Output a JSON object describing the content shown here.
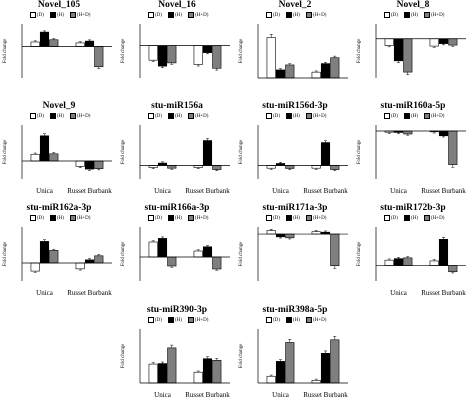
{
  "legend": {
    "d": "(D)",
    "h": "(H)",
    "hd": "(H+D)"
  },
  "colors": {
    "d": "#ffffff",
    "h": "#000000",
    "hd": "#7f7f7f",
    "axis": "#000000",
    "err": "#000000"
  },
  "ylabel": "Fold change",
  "categories": [
    "Unica",
    "Russet Burbank"
  ],
  "chart_data": [
    {
      "type": "bar",
      "title": "Novel_105",
      "categories": [
        "Unica",
        "Russet Burbank"
      ],
      "ylim": [
        -7,
        5
      ],
      "show_xcats": false,
      "series": [
        {
          "name": "(D)",
          "values": [
            1,
            0.8
          ]
        },
        {
          "name": "(H)",
          "values": [
            3.2,
            1.2
          ]
        },
        {
          "name": "(H+D)",
          "values": [
            1.5,
            -4.5
          ]
        }
      ]
    },
    {
      "type": "bar",
      "title": "Novel_16",
      "categories": [
        "Unica",
        "Russet Burbank"
      ],
      "ylim": [
        -6,
        4
      ],
      "show_xcats": false,
      "series": [
        {
          "name": "(D)",
          "values": [
            -2.7,
            -3.5
          ]
        },
        {
          "name": "(H)",
          "values": [
            -3.8,
            -1.3
          ]
        },
        {
          "name": "(H+D)",
          "values": [
            -3.2,
            -4.2
          ]
        }
      ]
    },
    {
      "type": "bar",
      "title": "Novel_2",
      "categories": [
        "Unica",
        "Russet Burbank"
      ],
      "ylim": [
        0,
        12
      ],
      "show_xcats": false,
      "series": [
        {
          "name": "(D)",
          "values": [
            9,
            1.3
          ]
        },
        {
          "name": "(H)",
          "values": [
            1.8,
            3.2
          ]
        },
        {
          "name": "(H+D)",
          "values": [
            2.9,
            4.5
          ]
        }
      ]
    },
    {
      "type": "bar",
      "title": "Novel_8",
      "categories": [
        "Unica",
        "Russet Burbank"
      ],
      "ylim": [
        -8,
        3
      ],
      "show_xcats": false,
      "series": [
        {
          "name": "(D)",
          "values": [
            -1.4,
            -1.5
          ]
        },
        {
          "name": "(H)",
          "values": [
            -4.5,
            -1
          ]
        },
        {
          "name": "(H+D)",
          "values": [
            -6.8,
            -1.3
          ]
        }
      ]
    },
    {
      "type": "bar",
      "title": "Novel_9",
      "categories": [
        "Unica",
        "Russet Burbank"
      ],
      "ylim": [
        -4,
        8
      ],
      "show_xcats": true,
      "series": [
        {
          "name": "(D)",
          "values": [
            1.5,
            -1.2
          ]
        },
        {
          "name": "(H)",
          "values": [
            5.6,
            -1.8
          ]
        },
        {
          "name": "(H+D)",
          "values": [
            1.6,
            -1.7
          ]
        }
      ]
    },
    {
      "type": "bar",
      "title": "stu-miR156a",
      "categories": [
        "Unica",
        "Russet Burbank"
      ],
      "ylim": [
        -10,
        30
      ],
      "show_xcats": true,
      "series": [
        {
          "name": "(D)",
          "values": [
            -1.5,
            -1.5
          ]
        },
        {
          "name": "(H)",
          "values": [
            1.8,
            18.5
          ]
        },
        {
          "name": "(H+D)",
          "values": [
            -2,
            -3
          ]
        }
      ]
    },
    {
      "type": "bar",
      "title": "stu-miR156d-3p",
      "categories": [
        "Unica",
        "Russet Burbank"
      ],
      "ylim": [
        -10,
        30
      ],
      "show_xcats": true,
      "series": [
        {
          "name": "(D)",
          "values": [
            -2,
            -2
          ]
        },
        {
          "name": "(H)",
          "values": [
            1.5,
            17
          ]
        },
        {
          "name": "(H+D)",
          "values": [
            -2.2,
            -3
          ]
        }
      ]
    },
    {
      "type": "bar",
      "title": "stu-miR160a-5p",
      "categories": [
        "Unica",
        "Russet Burbank"
      ],
      "ylim": [
        -40,
        5
      ],
      "show_xcats": true,
      "series": [
        {
          "name": "(D)",
          "values": [
            -1,
            -0.5
          ]
        },
        {
          "name": "(H)",
          "values": [
            -1.2,
            -4
          ]
        },
        {
          "name": "(H+D)",
          "values": [
            -2.5,
            -28
          ]
        }
      ]
    },
    {
      "type": "bar",
      "title": "stu-miR162a-3p",
      "categories": [
        "Unica",
        "Russet Burbank"
      ],
      "ylim": [
        -4,
        8
      ],
      "show_xcats": true,
      "series": [
        {
          "name": "(D)",
          "values": [
            -1.8,
            -1.3
          ]
        },
        {
          "name": "(H)",
          "values": [
            4.8,
            0.7
          ]
        },
        {
          "name": "(H+D)",
          "values": [
            2.8,
            1.6
          ]
        }
      ]
    },
    {
      "type": "bar",
      "title": "stu-miR166a-3p",
      "categories": [
        "Unica",
        "Russet Burbank"
      ],
      "ylim": [
        -4,
        5
      ],
      "show_xcats": false,
      "series": [
        {
          "name": "(D)",
          "values": [
            2.5,
            1
          ]
        },
        {
          "name": "(H)",
          "values": [
            3.1,
            1.7
          ]
        },
        {
          "name": "(H+D)",
          "values": [
            -1.5,
            -2
          ]
        }
      ]
    },
    {
      "type": "bar",
      "title": "stu-miR171a-3p",
      "categories": [
        "Unica",
        "Russet Burbank"
      ],
      "ylim": [
        -20,
        3
      ],
      "show_xcats": false,
      "series": [
        {
          "name": "(D)",
          "values": [
            1.5,
            1
          ]
        },
        {
          "name": "(H)",
          "values": [
            -1.2,
            0.8
          ]
        },
        {
          "name": "(H+D)",
          "values": [
            -1.6,
            -13.5
          ]
        }
      ]
    },
    {
      "type": "bar",
      "title": "stu-miR172b-3p",
      "categories": [
        "Unica",
        "Russet Burbank"
      ],
      "ylim": [
        -10,
        25
      ],
      "show_xcats": true,
      "series": [
        {
          "name": "(D)",
          "values": [
            3.5,
            3
          ]
        },
        {
          "name": "(H)",
          "values": [
            4.5,
            17
          ]
        },
        {
          "name": "(H+D)",
          "values": [
            5,
            -4
          ]
        }
      ]
    },
    {
      "type": "bar",
      "title": "stu-miR390-3p",
      "categories": [
        "Unica",
        "Russet Burbank"
      ],
      "ylim": [
        0,
        10
      ],
      "show_xcats": true,
      "series": [
        {
          "name": "(D)",
          "values": [
            3.5,
            2
          ]
        },
        {
          "name": "(H)",
          "values": [
            3.6,
            4.5
          ]
        },
        {
          "name": "(H+D)",
          "values": [
            6.5,
            4.2
          ]
        }
      ]
    },
    {
      "type": "bar",
      "title": "stu-miR398a-5p",
      "categories": [
        "Unica",
        "Russet Burbank"
      ],
      "ylim": [
        0,
        20
      ],
      "show_xcats": true,
      "series": [
        {
          "name": "(D)",
          "values": [
            2.5,
            1
          ]
        },
        {
          "name": "(H)",
          "values": [
            8,
            11
          ]
        },
        {
          "name": "(H+D)",
          "values": [
            15,
            16
          ]
        }
      ]
    }
  ]
}
